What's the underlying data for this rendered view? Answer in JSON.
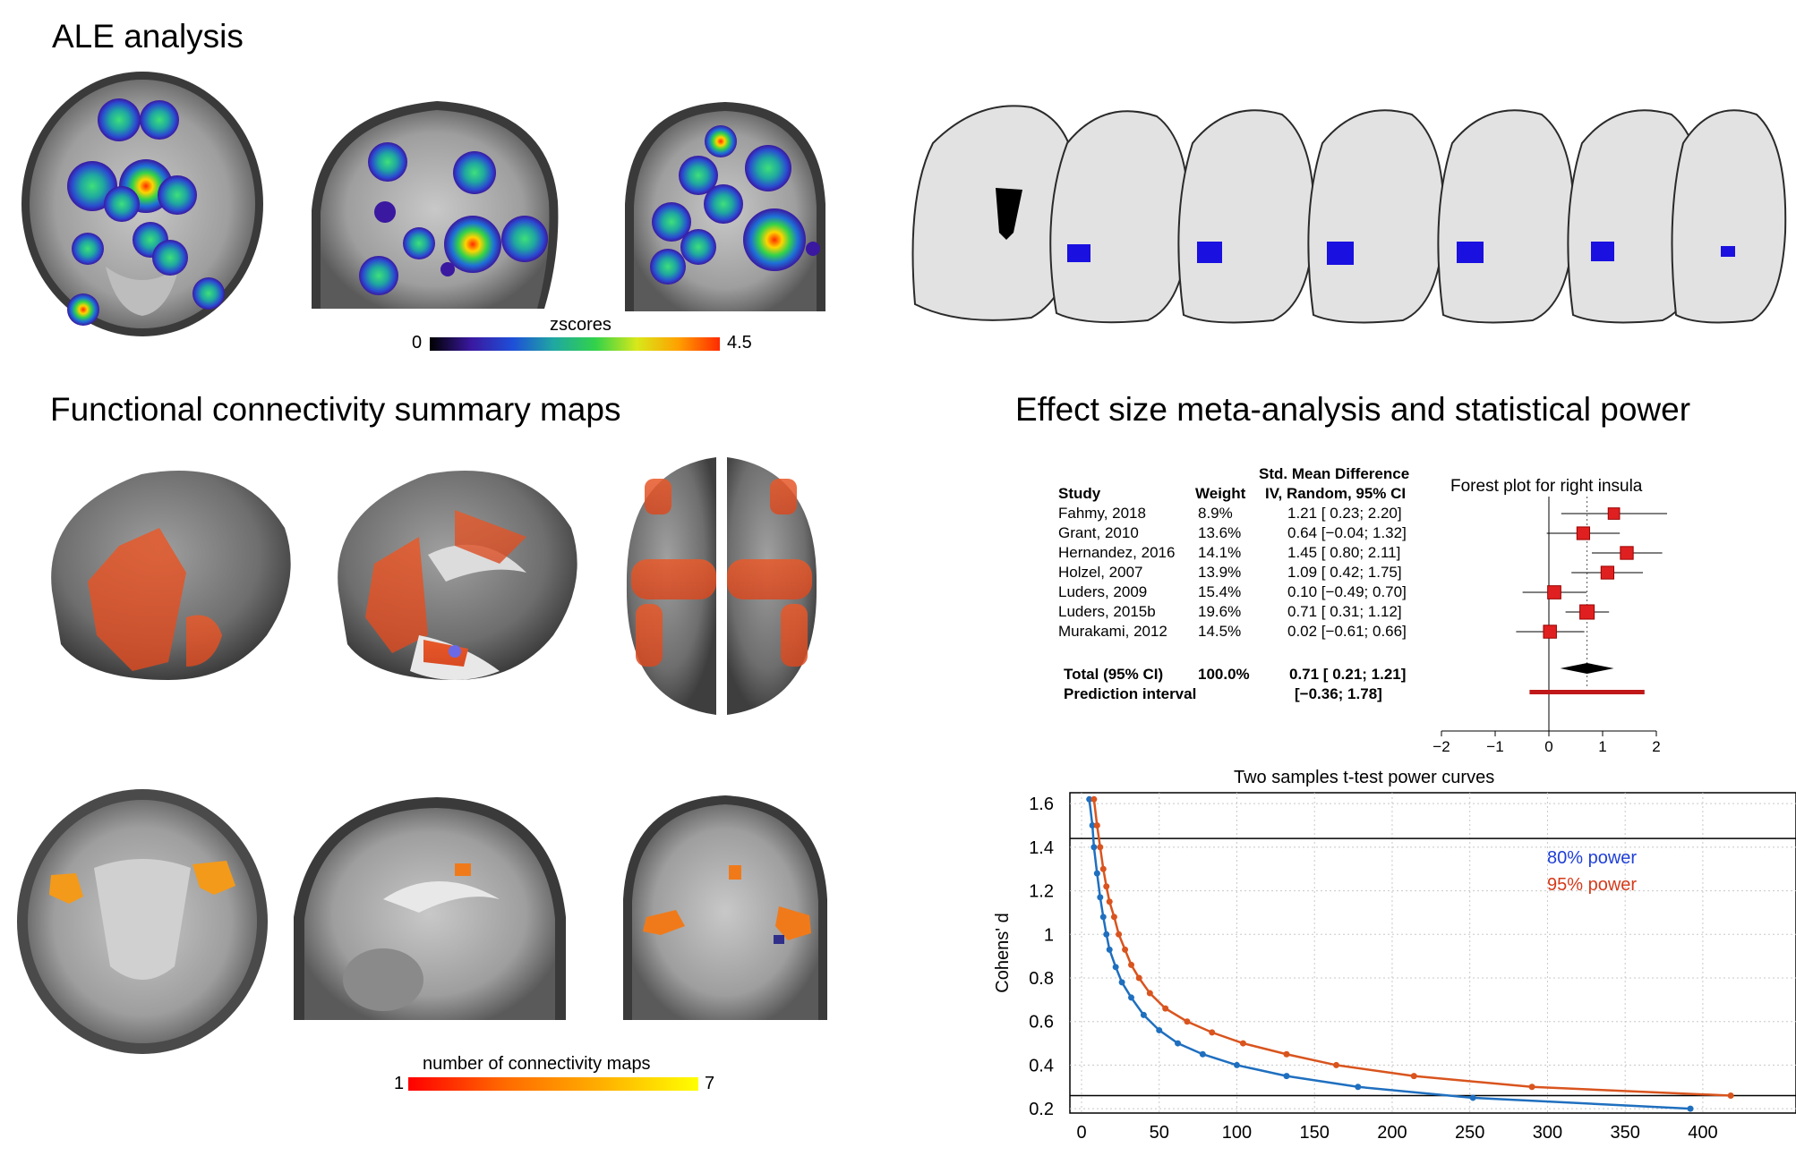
{
  "headings": {
    "ale": "ALE analysis",
    "fc": "Functional connectivity summary maps",
    "effect": "Effect size meta-analysis and statistical power"
  },
  "ale_colorbar": {
    "label": "zscores",
    "min": "0",
    "max": "4.5"
  },
  "fc_colorbar": {
    "label": "number of connectivity maps",
    "min": "1",
    "max": "7"
  },
  "forest": {
    "title": "Forest plot for right insula",
    "header_line1": "Std. Mean Difference",
    "header_study": "Study",
    "header_weight": "Weight",
    "header_ci": "IV, Random, 95% CI",
    "studies": [
      {
        "name": "Fahmy, 2018",
        "weight": "8.9%",
        "ci_text": "1.21 [ 0.23; 2.20]",
        "est": 1.21,
        "lo": 0.23,
        "hi": 2.2
      },
      {
        "name": "Grant, 2010",
        "weight": "13.6%",
        "ci_text": "0.64 [−0.04; 1.32]",
        "est": 0.64,
        "lo": -0.04,
        "hi": 1.32
      },
      {
        "name": "Hernandez, 2016",
        "weight": "14.1%",
        "ci_text": "1.45 [ 0.80; 2.11]",
        "est": 1.45,
        "lo": 0.8,
        "hi": 2.11
      },
      {
        "name": "Holzel, 2007",
        "weight": "13.9%",
        "ci_text": "1.09 [ 0.42; 1.75]",
        "est": 1.09,
        "lo": 0.42,
        "hi": 1.75
      },
      {
        "name": "Luders, 2009",
        "weight": "15.4%",
        "ci_text": "0.10 [−0.49; 0.70]",
        "est": 0.1,
        "lo": -0.49,
        "hi": 0.7
      },
      {
        "name": "Luders, 2015b",
        "weight": "19.6%",
        "ci_text": "0.71 [ 0.31; 1.12]",
        "est": 0.71,
        "lo": 0.31,
        "hi": 1.12
      },
      {
        "name": "Murakami, 2012",
        "weight": "14.5%",
        "ci_text": "0.02 [−0.61; 0.66]",
        "est": 0.02,
        "lo": -0.61,
        "hi": 0.66
      }
    ],
    "total": {
      "name": "Total (95% CI)",
      "weight": "100.0%",
      "ci_text": "0.71 [ 0.21; 1.21]",
      "est": 0.71,
      "lo": 0.21,
      "hi": 1.21
    },
    "prediction": {
      "name": "Prediction interval",
      "ci_text": "[−0.36; 1.78]",
      "lo": -0.36,
      "hi": 1.78
    },
    "xticks": [
      -2,
      -1,
      0,
      1,
      2
    ],
    "xtick_labels": [
      "−2",
      "−1",
      "0",
      "1",
      "2"
    ]
  },
  "chart_data": {
    "type": "line",
    "title": "Two samples t-test power curves",
    "xlabel": "",
    "ylabel": "Cohens' d",
    "xlim": [
      0,
      460
    ],
    "ylim": [
      0.18,
      1.65
    ],
    "xticks": [
      0,
      50,
      100,
      150,
      200,
      250,
      300,
      350,
      400
    ],
    "yticks": [
      0.2,
      0.4,
      0.6,
      0.8,
      1,
      1.2,
      1.4,
      1.6
    ],
    "hlines": [
      1.44,
      0.26
    ],
    "grid": true,
    "legend_position": "top-right",
    "series": [
      {
        "name": "80% power",
        "color": "#1f6fbf",
        "x": [
          5,
          7,
          8,
          10,
          12,
          14,
          16,
          18,
          22,
          26,
          32,
          40,
          50,
          62,
          78,
          100,
          132,
          178,
          252,
          392
        ],
        "y": [
          1.62,
          1.5,
          1.4,
          1.28,
          1.17,
          1.08,
          1.0,
          0.93,
          0.85,
          0.78,
          0.71,
          0.63,
          0.56,
          0.5,
          0.45,
          0.4,
          0.35,
          0.3,
          0.25,
          0.2
        ]
      },
      {
        "name": "95% power",
        "color": "#d9541e",
        "x": [
          8,
          10,
          12,
          14,
          16,
          18,
          21,
          24,
          28,
          32,
          37,
          44,
          54,
          68,
          84,
          104,
          132,
          164,
          214,
          290,
          418
        ],
        "y": [
          1.62,
          1.5,
          1.4,
          1.3,
          1.22,
          1.15,
          1.08,
          1.0,
          0.93,
          0.86,
          0.8,
          0.73,
          0.66,
          0.6,
          0.55,
          0.5,
          0.45,
          0.4,
          0.35,
          0.3,
          0.26
        ]
      }
    ]
  }
}
